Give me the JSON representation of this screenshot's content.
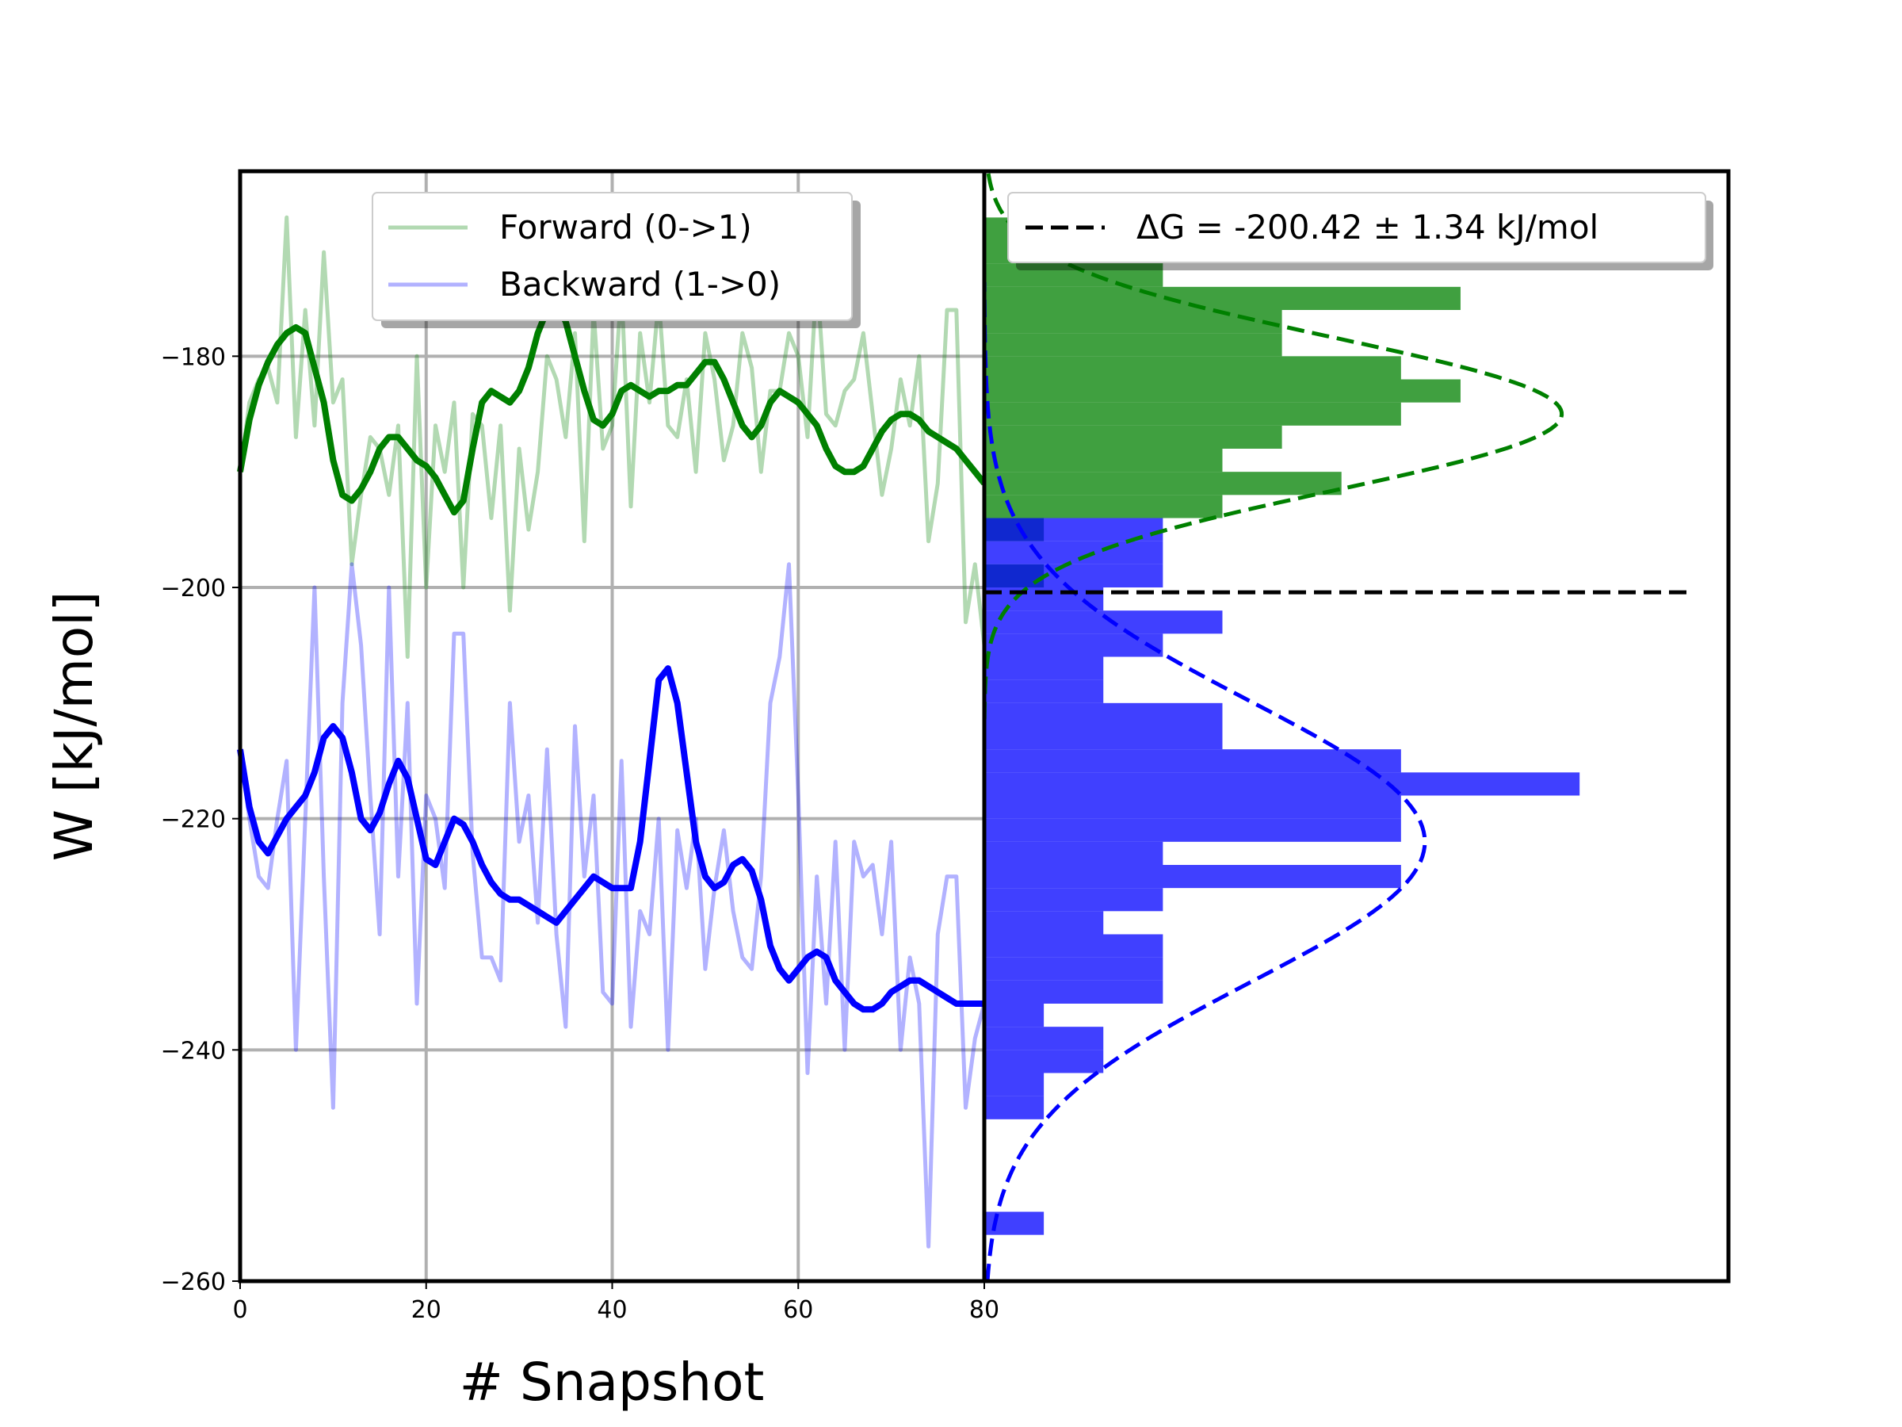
{
  "chart_data": [
    {
      "type": "line",
      "xlabel": "# Snapshot",
      "ylabel": "W [kJ/mol]",
      "xlim": [
        0,
        80
      ],
      "ylim": [
        -260,
        -164
      ],
      "xticks": [
        0,
        20,
        40,
        60,
        80
      ],
      "yticks": [
        -180,
        -200,
        -220,
        -240,
        -260
      ],
      "xtick_labels": [
        "0",
        "20",
        "40",
        "60",
        "80"
      ],
      "ytick_labels": [
        "−180",
        "−200",
        "−220",
        "−240",
        "−260"
      ],
      "grid": true,
      "legend_position": "top-center",
      "colors": {
        "forward": "#008000",
        "backward": "#0000ff"
      },
      "series": [
        {
          "name": "Forward (0->1)",
          "role": "raw",
          "x": [
            0,
            1,
            2,
            3,
            4,
            5,
            6,
            7,
            8,
            9,
            10,
            11,
            12,
            13,
            14,
            15,
            16,
            17,
            18,
            19,
            20,
            21,
            22,
            23,
            24,
            25,
            26,
            27,
            28,
            29,
            30,
            31,
            32,
            33,
            34,
            35,
            36,
            37,
            38,
            39,
            40,
            41,
            42,
            43,
            44,
            45,
            46,
            47,
            48,
            49,
            50,
            51,
            52,
            53,
            54,
            55,
            56,
            57,
            58,
            59,
            60,
            61,
            62,
            63,
            64,
            65,
            66,
            67,
            68,
            69,
            70,
            71,
            72,
            73,
            74,
            75,
            76,
            77,
            78,
            79,
            80
          ],
          "y": [
            -190,
            -184,
            -182,
            -181,
            -184,
            -168,
            -187,
            -176,
            -186,
            -171,
            -184,
            -182,
            -198,
            -192,
            -187,
            -188,
            -192,
            -186,
            -206,
            -180,
            -200,
            -186,
            -190,
            -184,
            -200,
            -185,
            -186,
            -194,
            -186,
            -202,
            -188,
            -195,
            -190,
            -180,
            -182,
            -187,
            -178,
            -196,
            -176,
            -188,
            -186,
            -174,
            -193,
            -178,
            -184,
            -175,
            -186,
            -187,
            -182,
            -190,
            -178,
            -182,
            -189,
            -186,
            -178,
            -181,
            -190,
            -183,
            -183,
            -178,
            -180,
            -187,
            -173,
            -185,
            -186,
            -183,
            -182,
            -178,
            -185,
            -192,
            -188,
            -182,
            -186,
            -180,
            -196,
            -191,
            -176,
            -176,
            -203,
            -198,
            -205
          ]
        },
        {
          "name": "Backward (1->0)",
          "role": "raw",
          "x": [
            0,
            1,
            2,
            3,
            4,
            5,
            6,
            7,
            8,
            9,
            10,
            11,
            12,
            13,
            14,
            15,
            16,
            17,
            18,
            19,
            20,
            21,
            22,
            23,
            24,
            25,
            26,
            27,
            28,
            29,
            30,
            31,
            32,
            33,
            34,
            35,
            36,
            37,
            38,
            39,
            40,
            41,
            42,
            43,
            44,
            45,
            46,
            47,
            48,
            49,
            50,
            51,
            52,
            53,
            54,
            55,
            56,
            57,
            58,
            59,
            60,
            61,
            62,
            63,
            64,
            65,
            66,
            67,
            68,
            69,
            70,
            71,
            72,
            73,
            74,
            75,
            76,
            77,
            78,
            79,
            80
          ],
          "y": [
            -214,
            -220,
            -225,
            -226,
            -220,
            -215,
            -240,
            -220,
            -200,
            -225,
            -245,
            -210,
            -198,
            -205,
            -218,
            -230,
            -200,
            -225,
            -210,
            -236,
            -218,
            -220,
            -226,
            -204,
            -204,
            -223,
            -232,
            -232,
            -234,
            -210,
            -222,
            -218,
            -229,
            -214,
            -230,
            -238,
            -212,
            -225,
            -218,
            -235,
            -236,
            -215,
            -238,
            -228,
            -230,
            -220,
            -240,
            -221,
            -226,
            -220,
            -233,
            -226,
            -221,
            -228,
            -232,
            -233,
            -225,
            -210,
            -206,
            -198,
            -218,
            -242,
            -225,
            -236,
            -222,
            -240,
            -222,
            -225,
            -224,
            -230,
            -222,
            -240,
            -232,
            -236,
            -257,
            -230,
            -225,
            -225,
            -245,
            -239,
            -236
          ]
        },
        {
          "name": "",
          "role": "smoothed",
          "parent": "Forward (0->1)",
          "x": [
            0,
            1,
            2,
            3,
            4,
            5,
            6,
            7,
            8,
            9,
            10,
            11,
            12,
            13,
            14,
            15,
            16,
            17,
            18,
            19,
            20,
            21,
            22,
            23,
            24,
            25,
            26,
            27,
            28,
            29,
            30,
            31,
            32,
            33,
            34,
            35,
            36,
            37,
            38,
            39,
            40,
            41,
            42,
            43,
            44,
            45,
            46,
            47,
            48,
            49,
            50,
            51,
            52,
            53,
            54,
            55,
            56,
            57,
            58,
            59,
            60,
            61,
            62,
            63,
            64,
            65,
            66,
            67,
            68,
            69,
            70,
            71,
            72,
            73,
            74,
            75,
            76,
            77,
            78,
            79,
            80
          ],
          "y": [
            -190,
            -185.5,
            -182.5,
            -180.5,
            -179,
            -178,
            -177.5,
            -178,
            -181,
            -184,
            -189,
            -192,
            -192.5,
            -191.5,
            -190,
            -188,
            -187,
            -187,
            -188,
            -189,
            -189.5,
            -190.5,
            -192,
            -193.5,
            -192.5,
            -188,
            -184,
            -183,
            -183.5,
            -184,
            -183,
            -181,
            -178,
            -176,
            -175.5,
            -177,
            -180,
            -183,
            -185.5,
            -186,
            -185,
            -183,
            -182.5,
            -183,
            -183.5,
            -183,
            -183,
            -182.5,
            -182.5,
            -181.5,
            -180.5,
            -180.5,
            -182,
            -184,
            -186,
            -187,
            -186,
            -184,
            -183,
            -183.5,
            -184,
            -185,
            -186,
            -188,
            -189.5,
            -190,
            -190,
            -189.5,
            -188,
            -186.5,
            -185.5,
            -185,
            -185,
            -185.5,
            -186.5,
            -187,
            -187.5,
            -188,
            -189,
            -190,
            -191
          ]
        },
        {
          "name": "",
          "role": "smoothed",
          "parent": "Backward (1->0)",
          "x": [
            0,
            1,
            2,
            3,
            4,
            5,
            6,
            7,
            8,
            9,
            10,
            11,
            12,
            13,
            14,
            15,
            16,
            17,
            18,
            19,
            20,
            21,
            22,
            23,
            24,
            25,
            26,
            27,
            28,
            29,
            30,
            31,
            32,
            33,
            34,
            35,
            36,
            37,
            38,
            39,
            40,
            41,
            42,
            43,
            44,
            45,
            46,
            47,
            48,
            49,
            50,
            51,
            52,
            53,
            54,
            55,
            56,
            57,
            58,
            59,
            60,
            61,
            62,
            63,
            64,
            65,
            66,
            67,
            68,
            69,
            70,
            71,
            72,
            73,
            74,
            75,
            76,
            77,
            78,
            79,
            80
          ],
          "y": [
            -214,
            -219,
            -222,
            -223,
            -221.5,
            -220,
            -219,
            -218,
            -216,
            -213,
            -212,
            -213,
            -216,
            -220,
            -221,
            -219.5,
            -217,
            -215,
            -216.5,
            -220,
            -223.5,
            -224,
            -222,
            -220,
            -220.5,
            -222,
            -224,
            -225.5,
            -226.5,
            -227,
            -227,
            -227.5,
            -228,
            -228.5,
            -229,
            -228,
            -227,
            -226,
            -225,
            -225.5,
            -226,
            -226,
            -226,
            -222,
            -215,
            -208,
            -207,
            -210,
            -216,
            -222,
            -225,
            -226,
            -225.5,
            -224,
            -223.5,
            -224.5,
            -227,
            -231,
            -233,
            -234,
            -233,
            -232,
            -231.5,
            -232,
            -234,
            -235,
            -236,
            -236.5,
            -236.5,
            -236,
            -235,
            -234.5,
            -234,
            -234,
            -234.5,
            -235,
            -235.5,
            -236,
            -236,
            -236,
            -236
          ]
        }
      ]
    },
    {
      "type": "bar",
      "orientation": "horizontal",
      "ylim": [
        -260,
        -164
      ],
      "legend_entries": [
        {
          "name": "ΔG = -200.42 ± 1.34 kJ/mol",
          "style": "dashed",
          "color": "#000000",
          "value": -200.42
        }
      ],
      "legend_position": "top-right",
      "colors": {
        "forward": "#008000",
        "backward": "#0000ff",
        "overlap": "#0000ad",
        "fit_forward": "#008000",
        "fit_backward": "#0000ff"
      },
      "bin_width": 2,
      "forward_hist": {
        "bins_lower": [
          -208,
          -206,
          -204,
          -202,
          -200,
          -198,
          -196,
          -194,
          -192,
          -190,
          -188,
          -186,
          -184,
          -182,
          -180,
          -178,
          -176,
          -174,
          -172,
          -170,
          -168,
          -166
        ],
        "counts": [
          0,
          0,
          0,
          0,
          1,
          0,
          1,
          4,
          6,
          4,
          5,
          7,
          8,
          7,
          5,
          5,
          8,
          3,
          3,
          1,
          0,
          0
        ]
      },
      "backward_hist": {
        "bins_lower": [
          -258,
          -256,
          -254,
          -252,
          -250,
          -248,
          -246,
          -244,
          -242,
          -240,
          -238,
          -236,
          -234,
          -232,
          -230,
          -228,
          -226,
          -224,
          -222,
          -220,
          -218,
          -216,
          -214,
          -212,
          -210,
          -208,
          -206,
          -204,
          -202,
          -200,
          -198,
          -196
        ],
        "counts": [
          0,
          1,
          0,
          0,
          0,
          0,
          1,
          1,
          2,
          2,
          1,
          3,
          3,
          3,
          2,
          3,
          7,
          3,
          7,
          7,
          10,
          7,
          4,
          4,
          2,
          2,
          3,
          4,
          2,
          3,
          3,
          3
        ]
      },
      "fits": [
        {
          "series": "Forward (0->1)",
          "mean": -185,
          "sigma": 6.6,
          "peak_count": 9.7,
          "style": "dashed"
        },
        {
          "series": "Backward (1->0)",
          "mean": -222,
          "sigma": 12.1,
          "peak_count": 7.4,
          "style": "dashed"
        }
      ],
      "xmax_count": 12.5
    }
  ]
}
